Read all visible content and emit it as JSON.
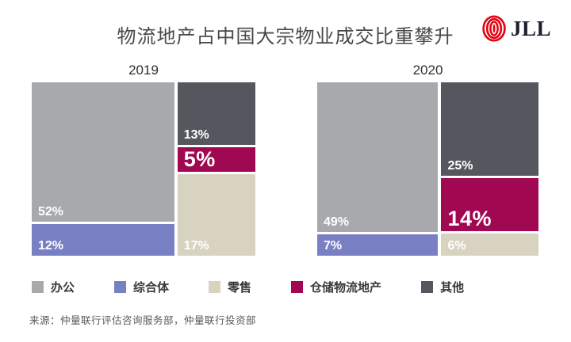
{
  "title": "物流地产占中国大宗物业成交比重攀升",
  "logo": {
    "text": "JLL",
    "icon_color": "#e30613"
  },
  "source": "来源：仲量联行评估咨询服务部，仲量联行投资部",
  "colors": {
    "办公": "#a7a9ac",
    "综合体": "#797fc3",
    "零售": "#d8d2c0",
    "仓储物流地产": "#a00852",
    "其他": "#54575e"
  },
  "legend": [
    {
      "label": "办公"
    },
    {
      "label": "综合体"
    },
    {
      "label": "零售"
    },
    {
      "label": "仓储物流地产"
    },
    {
      "label": "其他"
    }
  ],
  "chart_data": {
    "type": "mekko",
    "title": "物流地产占中国大宗物业成交比重攀升",
    "unit": "%",
    "emphasis_category": "仓储物流地产",
    "groups": [
      {
        "year": "2019",
        "columns": [
          {
            "segments": [
              {
                "category": "办公",
                "value": 52
              },
              {
                "category": "综合体",
                "value": 12
              }
            ]
          },
          {
            "segments": [
              {
                "category": "其他",
                "value": 13
              },
              {
                "category": "仓储物流地产",
                "value": 5
              },
              {
                "category": "零售",
                "value": 17
              }
            ]
          }
        ]
      },
      {
        "year": "2020",
        "columns": [
          {
            "segments": [
              {
                "category": "办公",
                "value": 49
              },
              {
                "category": "综合体",
                "value": 7
              }
            ]
          },
          {
            "segments": [
              {
                "category": "其他",
                "value": 25
              },
              {
                "category": "仓储物流地产",
                "value": 14
              },
              {
                "category": "零售",
                "value": 6
              }
            ]
          }
        ]
      }
    ]
  }
}
